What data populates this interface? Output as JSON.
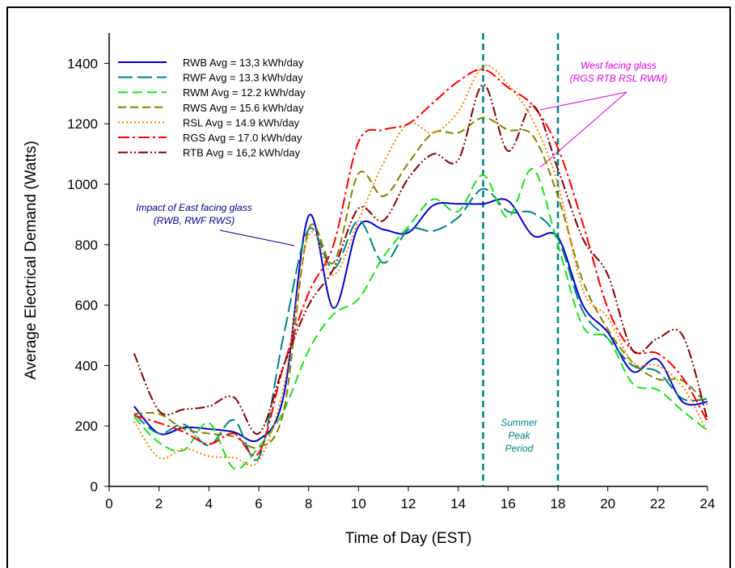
{
  "chart_data": {
    "type": "line",
    "xlabel": "Time of Day (EST)",
    "ylabel": "Average Electrical Demand (Watts)",
    "xlim": [
      0,
      24
    ],
    "xticks": [
      0,
      2,
      4,
      6,
      8,
      10,
      12,
      14,
      16,
      18,
      20,
      22,
      24
    ],
    "ylim": [
      0,
      1500
    ],
    "yticks": [
      0,
      200,
      400,
      600,
      800,
      1000,
      1200,
      1400
    ],
    "legend": "upper-left",
    "x": [
      1,
      2,
      3,
      4,
      5,
      6,
      7,
      8,
      9,
      10,
      11,
      12,
      13,
      14,
      15,
      16,
      17,
      18,
      19,
      20,
      21,
      22,
      23,
      24
    ],
    "series": [
      {
        "name": "RWB Avg = 13,3 kWh/day",
        "color": "#0000cc",
        "dash": "none",
        "values": [
          265,
          175,
          195,
          190,
          180,
          155,
          300,
          895,
          590,
          860,
          850,
          840,
          930,
          935,
          935,
          945,
          830,
          825,
          600,
          510,
          380,
          420,
          280,
          280
        ]
      },
      {
        "name": "RWF Avg = 13.3 kWh/day",
        "color": "#008080",
        "dash": "18,6",
        "values": [
          240,
          175,
          205,
          135,
          220,
          95,
          500,
          850,
          720,
          880,
          740,
          850,
          845,
          890,
          985,
          910,
          905,
          820,
          580,
          490,
          400,
          380,
          290,
          290
        ]
      },
      {
        "name": "RWM Avg = 12.2 kWh/day",
        "color": "#22dd22",
        "dash": "12,6",
        "values": [
          230,
          145,
          120,
          210,
          60,
          130,
          250,
          450,
          570,
          620,
          760,
          860,
          950,
          910,
          1030,
          890,
          1050,
          800,
          530,
          490,
          340,
          320,
          250,
          185
        ]
      },
      {
        "name": "RWS Avg = 15.6 kWh/day",
        "color": "#808000",
        "dash": "10,5",
        "values": [
          240,
          240,
          190,
          175,
          165,
          130,
          250,
          850,
          740,
          1035,
          960,
          1070,
          1170,
          1170,
          1220,
          1180,
          1160,
          960,
          680,
          520,
          410,
          355,
          350,
          270
        ]
      },
      {
        "name": "RSL Avg = 14.9 kWh/day",
        "color": "#ff8000",
        "dash": "2,3",
        "values": [
          215,
          95,
          125,
          100,
          95,
          85,
          330,
          830,
          700,
          880,
          1070,
          1200,
          1170,
          1240,
          1390,
          1330,
          1210,
          1000,
          650,
          560,
          410,
          400,
          330,
          180
        ]
      },
      {
        "name": "RGS Avg = 17.0 kWh/day",
        "color": "#ff0000",
        "dash": "14,4,3,4",
        "values": [
          235,
          210,
          180,
          140,
          175,
          110,
          400,
          640,
          800,
          1140,
          1180,
          1200,
          1270,
          1340,
          1380,
          1320,
          1260,
          1120,
          870,
          590,
          450,
          440,
          360,
          215
        ]
      },
      {
        "name": "RTB Avg = 16,2 kWh/day",
        "color": "#800000",
        "dash": "12,3,2,3,2,3",
        "values": [
          440,
          250,
          255,
          265,
          295,
          175,
          400,
          600,
          720,
          920,
          880,
          1020,
          1100,
          1080,
          1330,
          1110,
          1260,
          1050,
          820,
          700,
          450,
          490,
          500,
          220
        ]
      }
    ],
    "peak_lines": {
      "color": "#008080",
      "x": [
        15,
        18
      ]
    },
    "annotations": [
      "West facing glass",
      "(RGS RTB RSL  RWM)",
      "Impact of East facing glass",
      "(RWB, RWF  RWS)",
      "Summer",
      "Peak",
      "Period"
    ]
  }
}
